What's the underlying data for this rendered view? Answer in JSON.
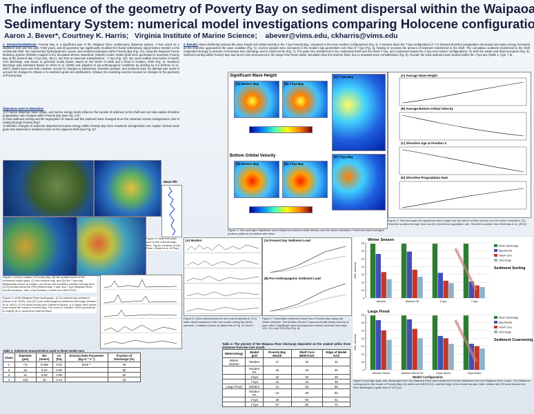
{
  "header": {
    "title_line1": "The influence of the geometry of Poverty Bay on sediment dispersal within the Waipaoa",
    "title_line2": "Sedimentary System:  numerical model investigations comparing Holocene configurations",
    "authors": "Aaron J. Bever*, Courtney K. Harris;   Virginia Institute of Marine Science;    abever@vims.edu, ckharris@vims.edu"
  },
  "intro": {
    "heading": "1. Introduction/Methods:",
    "text": "Poverty Bay is a significant part of the Waipaoa River sedimentary dispersal system. It has acted as a sediment sink over the past 7,000 years, and its geometry has significantly modified the fluvial sedimentary signal before transfer to the continental shelf. We represented hydrodynamics, waves, and sediment-transport within Poverty Bay (Fig. 1A), using the Regional Ocean Modeling System (ROMS) coupled to the Simulated WAves Nearshore (SWAN) model. Model grids were generated to represent Poverty Bay at the present-day, 2 kya (Fig. 1B,C), and that at maximum transgression, ~7 kya (Fig. 1D). We used realistic time-series of winds, river discharge, and waves to generate model inputs, based on the winter of 2006 and a flood in October, 2005 (Fig. 2). Sediment discharge was estimated based on Hicks et al. (2000) and adjusted to pre-anthropogenic conditions by dividing by 6.6 (Kettner et al., 2007). Model input was held constant, except for changes to bathymetry, shoreline position, and sediment load. No attempt was made to account for changes to climate or to sediment grain-size distributions. Instead, the modeling exercise focused on changes to the geometry of Poverty Bay."
  },
  "objectives": {
    "heading": "Objectives were to determine:",
    "items": [
      "1)  If marine dispersal, basin shape, and marine energy levels influence the transfer of sediment to the shelf and can help explain shoreline progradation rate changes within Poverty Bay (See Fig. 1A)?",
      "2)  How sediment sorting and the segregation of coarse and fine sediment have changed since the maximum marine transgression, due to routing through Poverty Bay?",
      "3)  Whether changes to sediment dispersal and wave energy within Poverty Bay since maximum transgression can explain vertical mean grain size observed in sediment cores on the adjacent shelf (See Fig. 5)?"
    ]
  },
  "results": {
    "heading": "2. Results:",
    "text": "Wave sheltering reduced the wave height and orbital velocity in the 7 kya Poverty Bay, compared to the more modern configurations (Fig. 4). A transect down the 7 kya configuration (A\"-A') showed shoreline progradation decreased and wave energy increased as the shoreline approached the open coastline (Fig. 5). Current speeds were increased in the modern bay geometries over that of 7 kya (Fig. 6), helping to increase the amount of sediment transferred to the shelf. The cumulative sediment transferred to the shelf responded strongly to periods of increased river discharge and to swell events (Fig. 7). The grain size transferred to the continental shelf was the finest 7 kya, and coarsened toward the 2 kya and modern configurations, for both the winter and flood scenarios (Fig. 8). Sediment sorting within Poverty Bay was much more pronounced in the longer time-frame winter simulation than the extreme flood, due to repeated wave remobilization (Fig. 8). Overall, the most sediment was retained within the 7 kya bay (Table 2, Figs. 7,8)."
  },
  "figures": {
    "fig1": "Figure 1:  (A,B) Location of Poverty Bay, (B) the spatial extent of the numerical model grids, (C) the modern bay, and (D) the 7 kya bay. Bathymetry shown in meters. (A) shows the shoreline position through time. (C,D) Arrows show the (PD) present-day, 2 kya, and 7 kya Waipaoa River mouth locations. Star is the location of shelf core MD972122.",
    "fig2": "Figure 2:  (A,B) Waipaoa River hydrograph, (C,D) present day sediment (Hicks et al. 2000), and (E,F) pre-anthropogenic sediment discharge (Kettner et al. 2007). (G,H) Wind forcing from Gisborne Airport. (I,J) Wave time-series from inside the modern Poverty Bay. The event in October, 2005 represents a roughly 40 yr recurrence interval flood.",
    "fig5": "Figure 5:  Observed grain size on the shelf through time. Figure courtesy of Lila Rose. (Gadd et al. in Prep)",
    "fig4": "Figure 4:  Time-averaged significant wave height and bottom orbital velocity over the winter simulation. Flood and swell averages produce patterns consistent with these.",
    "fig3": "Figure 3:  Time-averaged (A) significant wave height and (B) bottom orbital velocity over the winter simulation. (C) Shoreline position through time and (D) shoreline progradation rate. Shoreline position from Wolinsky et al. (2010)",
    "fig6": "Figure 6:  Once-metal shows the bed current speeds in 10 m water depth seaward of the river mouth during the winter scenario. Locations shown as diamonds in Fig. 1C and D.",
    "fig7": "Figure 7:  Cumulative sediment export from Poverty Bay during the winter scenario. The Modern PA and 2 kya curves fall nearly one-top of each other. Significant wave resuspension events occurred near days 124, 141, and 220 (See Fig. 6).",
    "fig8": "Figure 8:  Average grain size discharged from the Waipaoa River and transferred to three distances from the Waipaoa River mouth. The distances correspond to the mouth of Poverty Bay, the shelf core MD972122, and the edge of the model domain. Note: without the 2% sand fraction the river discharges a grain size of 10.9 μm.",
    "map_top": "Significant Wave Height",
    "map_bottom": "Bottom Orbital Velocity",
    "panel_a": "(A) Modern Bay",
    "panel_b": "(B) 2 kya Bay",
    "panel_c": "(C) 7 kya Bay",
    "panel_d": "(D) Modern Bay",
    "panel_e": "(E) 2 kya Bay",
    "panel_f": "(F) 7 kya Bay",
    "p3a": "(A) Average Wave Height",
    "p3b": "(B) Average Bottom Orbital Velocity",
    "p3c": "(C) Shoreline Age at Position X",
    "p3d": "(D) Shoreline Progradation Rate",
    "p6": "(A) Modern",
    "p7a": "(A) Present Day Sediment Load",
    "p7b": "(B) Pre-Anthropogenic Sediment Load",
    "mean_phi": "Mean Phi"
  },
  "table1": {
    "caption": "Table 1:  Sediment characteristics used in these model runs.",
    "columns": [
      "Class",
      "Diameter (μm)",
      "Ws (mm/s)",
      "τcr (Pa)",
      "Erosion Rate Parameter (kg m⁻² s⁻¹)",
      "Fraction of Discharge (%)"
    ],
    "rows": [
      [
        "1",
        "7.8",
        "0.059",
        "0.02",
        "5x10⁻⁵",
        "40"
      ],
      [
        "2",
        "15",
        "0.23",
        "0.05",
        "",
        "30"
      ],
      [
        "3",
        "31",
        "0.93",
        "0.08",
        "",
        "20"
      ],
      [
        "4",
        "125",
        "10",
        "0.14",
        "",
        "10"
      ]
    ]
  },
  "table2": {
    "caption": "Table 2:  The percent of the Waipaoa River discharge deposited on the seabed within three distances from the river mouth.",
    "columns": [
      "Meteorology",
      "Model grid",
      "Poverty Bay Mouth",
      "Shelf Core MD972122",
      "Edge of Model Grid"
    ],
    "rows": [
      [
        "Winter Season",
        "Modern",
        "17",
        "22",
        "42"
      ],
      [
        "",
        "Modern PA",
        "16",
        "19",
        "40"
      ],
      [
        "",
        "2 kya",
        "10",
        "33",
        "48"
      ],
      [
        "",
        "7 kya",
        "41",
        "44",
        "48"
      ],
      [
        "Large Flood",
        "Modern",
        "14",
        "53",
        "65"
      ],
      [
        "",
        "Modern PA",
        "13",
        "49",
        "54"
      ],
      [
        "",
        "2 kya",
        "25",
        "59",
        "61"
      ],
      [
        "",
        "7 kya",
        "57",
        "56",
        "73"
      ]
    ]
  },
  "chart_data": [
    {
      "type": "bar",
      "title": "Winter Season",
      "ylabel": "D50, microns",
      "annotation": "Sediment Sorting",
      "categories": [
        "Modern",
        "Modern PA",
        "2 kya",
        "7 kya"
      ],
      "ylim": [
        9,
        16
      ],
      "yticks": [
        9,
        10,
        11,
        12,
        13,
        14,
        15,
        16
      ],
      "legend": "right",
      "series": [
        {
          "name": "River Discharge",
          "color": "#2e7d32",
          "values": [
            15.9,
            15.9,
            15.9,
            15.9
          ]
        },
        {
          "name": "Bay Mouth",
          "color": "#3f51b5",
          "values": [
            14.6,
            14.9,
            12.2,
            11.1
          ]
        },
        {
          "name": "Shelf Core",
          "color": "#c0392b",
          "values": [
            12.3,
            12.6,
            11.2,
            10.6
          ]
        },
        {
          "name": "Grid Edge",
          "color": "#8fb0c8",
          "values": [
            11.4,
            11.7,
            10.9,
            10.4
          ]
        }
      ]
    },
    {
      "type": "bar",
      "title": "Large Flood",
      "ylabel": "D50, microns",
      "annotation": "Sediment Coarsening Through Time",
      "xlabel": "Model Configuration",
      "categories": [
        "Modern Storm",
        "Modern Storm PA",
        "2 kya Storm",
        "7kya Storm"
      ],
      "ylim": [
        9,
        16
      ],
      "yticks": [
        9,
        10,
        11,
        12,
        13,
        14,
        15,
        16
      ],
      "legend": "right",
      "series": [
        {
          "name": "River Discharge",
          "color": "#2e7d32",
          "values": [
            15.9,
            15.9,
            15.9,
            15.9
          ]
        },
        {
          "name": "Bay Mouth",
          "color": "#3f51b5",
          "values": [
            15.3,
            15.4,
            13.3,
            12.3
          ]
        },
        {
          "name": "Shelf Core",
          "color": "#c0392b",
          "values": [
            14.0,
            14.2,
            13.0,
            12.0
          ]
        },
        {
          "name": "Grid Edge",
          "color": "#8fb0c8",
          "values": [
            12.8,
            13.0,
            12.3,
            11.7
          ]
        }
      ]
    }
  ]
}
